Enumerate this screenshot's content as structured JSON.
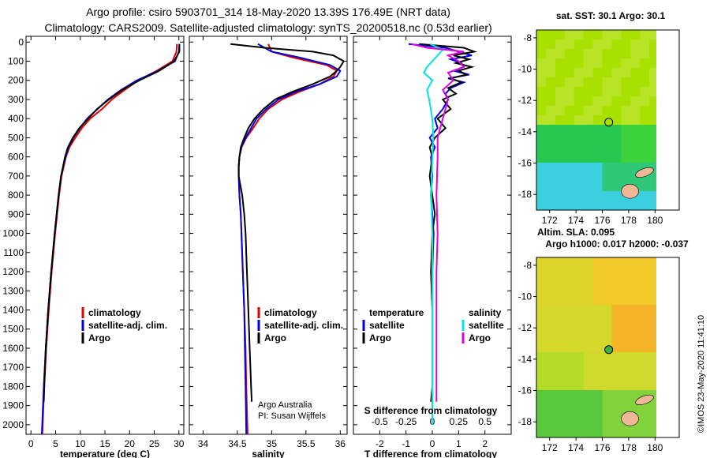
{
  "title": {
    "line1": "Argo profile: csiro 5903701_314 18-May-2020 13.39S 176.49E (NRT data)",
    "line2": "Climatology: CARS2009. Satellite-adjusted climatology: synTS_20200518.nc (0.53d earlier)"
  },
  "depth_ticks": [
    0,
    100,
    200,
    300,
    400,
    500,
    600,
    700,
    800,
    900,
    1000,
    1100,
    1200,
    1300,
    1400,
    1500,
    1600,
    1700,
    1800,
    1900,
    2000
  ],
  "colors": {
    "climatology": "#e00000",
    "satellite": "#0000e0",
    "argo": "#000000",
    "sal_sat": "#00e5e5",
    "sal_argo": "#e000e0",
    "land": "#f0b896"
  },
  "legend": {
    "climatology": "climatology",
    "satellite": "satellite-adj. clim.",
    "argo": "Argo"
  },
  "diff_legend": {
    "temperature": "temperature",
    "salinity": "salinity",
    "satellite": "satellite",
    "argo": "Argo"
  },
  "credits": {
    "line1": "Argo Australia",
    "line2": "PI: Susan Wijffels"
  },
  "diff_subtitle": "S difference from climatology",
  "timestamp": "©IMOS 23-May-2020 11:41:10",
  "chart_data": [
    {
      "type": "line",
      "title": "",
      "xlabel": "temperature (deg C)",
      "ylabel": "",
      "xlim": [
        -1,
        31
      ],
      "ylim": [
        2050,
        -30
      ],
      "xticks": [
        0,
        5,
        10,
        15,
        20,
        25,
        30
      ],
      "series": [
        {
          "name": "climatology",
          "depth": [
            10,
            50,
            100,
            150,
            200,
            250,
            300,
            350,
            400,
            450,
            500,
            550,
            600,
            700,
            800,
            900,
            1000,
            1200,
            1400,
            1600,
            1800,
            2050
          ],
          "values": [
            29.6,
            29.5,
            28.7,
            25.5,
            21.8,
            19,
            16.4,
            14.4,
            12,
            10.3,
            9,
            7.8,
            7.1,
            6.2,
            5.7,
            5.3,
            4.9,
            4.2,
            3.6,
            3.1,
            2.7,
            2.3
          ]
        },
        {
          "name": "satellite-adj. clim.",
          "depth": [
            10,
            50,
            100,
            150,
            200,
            250,
            300,
            350,
            400,
            450,
            500,
            550,
            600,
            700,
            800,
            900,
            1000,
            1200,
            1400,
            1600,
            1800,
            2050
          ],
          "values": [
            30.1,
            30,
            29.2,
            25.8,
            21.5,
            18.3,
            15.6,
            13.5,
            11.4,
            9.9,
            8.6,
            7.6,
            7,
            6.1,
            5.6,
            5.2,
            4.8,
            4.1,
            3.5,
            3,
            2.6,
            2.2
          ]
        },
        {
          "name": "Argo",
          "depth": [
            10,
            50,
            100,
            150,
            200,
            250,
            300,
            350,
            400,
            450,
            500,
            550,
            600,
            700,
            800,
            900,
            1000,
            1200,
            1400,
            1600,
            1800,
            1880
          ],
          "values": [
            30.1,
            30.1,
            29,
            26,
            22,
            18.5,
            15.8,
            13.4,
            11.6,
            9.8,
            8.5,
            7.5,
            6.9,
            6.1,
            5.6,
            5.2,
            4.8,
            4.1,
            3.5,
            3,
            2.7,
            2.6
          ]
        }
      ]
    },
    {
      "type": "line",
      "title": "",
      "xlabel": "salinity",
      "ylabel": "",
      "xlim": [
        33.8,
        36.1
      ],
      "ylim": [
        2050,
        -30
      ],
      "xticks": [
        34,
        34.5,
        35,
        35.5,
        36
      ],
      "series": [
        {
          "name": "climatology",
          "depth": [
            10,
            50,
            80,
            120,
            150,
            180,
            220,
            260,
            300,
            350,
            400,
            450,
            500,
            550,
            600,
            650,
            700,
            800,
            900,
            1000,
            1200,
            1400,
            1600,
            1800,
            2050
          ],
          "values": [
            34.95,
            35.0,
            35.3,
            35.8,
            35.95,
            35.9,
            35.7,
            35.4,
            35.15,
            34.95,
            34.82,
            34.73,
            34.63,
            34.56,
            34.53,
            34.52,
            34.52,
            34.53,
            34.55,
            34.56,
            34.58,
            34.6,
            34.62,
            34.63,
            34.65
          ]
        },
        {
          "name": "satellite-adj. clim.",
          "depth": [
            10,
            50,
            80,
            120,
            150,
            180,
            220,
            260,
            300,
            350,
            400,
            450,
            500,
            550,
            600,
            650,
            700,
            800,
            900,
            1000,
            1200,
            1400,
            1600,
            1800,
            2050
          ],
          "values": [
            34.8,
            35.0,
            35.4,
            35.85,
            36.0,
            35.95,
            35.7,
            35.35,
            35.1,
            34.92,
            34.78,
            34.7,
            34.62,
            34.56,
            34.53,
            34.52,
            34.52,
            34.53,
            34.55,
            34.56,
            34.58,
            34.6,
            34.61,
            34.62,
            34.63
          ]
        },
        {
          "name": "Argo",
          "depth": [
            10,
            30,
            50,
            70,
            100,
            130,
            150,
            180,
            220,
            260,
            300,
            350,
            400,
            450,
            500,
            550,
            600,
            650,
            700,
            800,
            900,
            1000,
            1200,
            1400,
            1600,
            1800,
            1880
          ],
          "values": [
            34.4,
            34.9,
            35.6,
            35.9,
            36.05,
            36.0,
            35.95,
            35.85,
            35.6,
            35.3,
            35.05,
            34.88,
            34.75,
            34.66,
            34.6,
            34.55,
            34.53,
            34.52,
            34.52,
            34.57,
            34.6,
            34.62,
            34.64,
            34.66,
            34.68,
            34.7,
            34.71
          ]
        }
      ]
    },
    {
      "type": "line",
      "title": "",
      "xlabel": "T difference from climatology",
      "ylabel": "",
      "xlim": [
        -3,
        3
      ],
      "ylim": [
        2050,
        -30
      ],
      "xticks": [
        -2,
        -1,
        0,
        1,
        2
      ],
      "secondary_xlabel": "S difference from climatology",
      "secondary_xticks": [
        "-0.5",
        "-0.25",
        "0",
        "0.25",
        "0.5"
      ],
      "series": [
        {
          "name": "T satellite",
          "depth": [
            10,
            30,
            50,
            70,
            90,
            110,
            130,
            150,
            170,
            190,
            210,
            240,
            270,
            300,
            350,
            400,
            450,
            500,
            550,
            600,
            700,
            800,
            900,
            1000,
            1200,
            1400,
            1600,
            1800,
            1880
          ],
          "values": [
            -0.9,
            0.5,
            1.0,
            1.5,
            0.7,
            1.1,
            1.2,
            0.8,
            1.4,
            0.6,
            1.2,
            0.7,
            0.5,
            0.6,
            0.4,
            0.1,
            0.2,
            -0.1,
            0.1,
            -0.05,
            0.0,
            -0.05,
            0.0,
            0.05,
            0.0,
            0.0,
            0.0,
            0.0,
            0.0
          ]
        },
        {
          "name": "T Argo",
          "depth": [
            10,
            30,
            50,
            70,
            90,
            110,
            130,
            150,
            170,
            190,
            210,
            240,
            270,
            300,
            350,
            400,
            450,
            500,
            550,
            600,
            700,
            800,
            900,
            1000,
            1200,
            1400,
            1600,
            1800,
            1880
          ],
          "values": [
            -0.5,
            1.2,
            1.6,
            0.8,
            1.4,
            0.9,
            1.5,
            1.0,
            1.3,
            0.7,
            1.1,
            0.6,
            0.9,
            0.4,
            0.7,
            0.2,
            0.5,
            0.1,
            -0.1,
            0.0,
            -0.1,
            0.0,
            0.1,
            0.0,
            -0.05,
            0.0,
            0.0,
            0.0,
            -0.05
          ]
        },
        {
          "name": "S satellite",
          "depth": [
            10,
            40,
            70,
            100,
            130,
            160,
            200,
            250,
            300,
            400,
            500,
            600,
            800,
            1000,
            1200,
            1400,
            1600,
            1800,
            2000
          ],
          "values": [
            -0.02,
            0.1,
            0.05,
            0.0,
            -0.05,
            -0.08,
            0.0,
            -0.05,
            -0.03,
            0.0,
            0.01,
            0.0,
            -0.01,
            0.0,
            0.0,
            0.0,
            0.0,
            0.0,
            0.0
          ]
        },
        {
          "name": "S Argo",
          "depth": [
            10,
            30,
            50,
            70,
            100,
            130,
            160,
            200,
            250,
            300,
            400,
            500,
            600,
            800,
            1000,
            1200,
            1400,
            1600,
            1800,
            1880
          ],
          "values": [
            -0.2,
            -0.05,
            0.3,
            0.15,
            0.25,
            0.3,
            0.15,
            0.2,
            0.1,
            0.15,
            0.1,
            0.05,
            0.05,
            0.04,
            0.05,
            0.04,
            0.04,
            0.04,
            0.04,
            0.04
          ]
        }
      ]
    },
    {
      "type": "heatmap",
      "title": "sat. SST: 30.1 Argo: 30.1",
      "xlabel": "",
      "ylabel": "",
      "xlim": [
        171,
        181
      ],
      "ylim": [
        -19,
        -7.5
      ],
      "xticks": [
        172,
        174,
        176,
        178,
        180
      ],
      "yticks": [
        -8,
        -10,
        -12,
        -14,
        -16,
        -18
      ],
      "marker": {
        "lon": 176.49,
        "lat": -13.39
      }
    },
    {
      "type": "heatmap",
      "title": "Altim. SLA: 0.095",
      "subtitle": "Argo h1000: 0.017 h2000: -0.037",
      "xlabel": "",
      "ylabel": "",
      "xlim": [
        171,
        181
      ],
      "ylim": [
        -19,
        -7.5
      ],
      "xticks": [
        172,
        174,
        176,
        178,
        180
      ],
      "yticks": [
        -8,
        -10,
        -12,
        -14,
        -16,
        -18
      ],
      "marker": {
        "lon": 176.49,
        "lat": -13.39
      }
    }
  ]
}
